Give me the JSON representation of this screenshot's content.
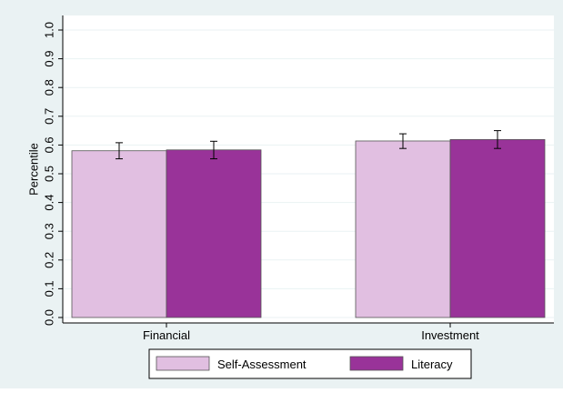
{
  "chart_data": {
    "type": "bar",
    "title": "",
    "xlabel": "",
    "ylabel": "Percentile",
    "ylim": [
      0,
      1
    ],
    "yticks": [
      "0.0",
      "0.1",
      "0.2",
      "0.3",
      "0.4",
      "0.5",
      "0.6",
      "0.7",
      "0.8",
      "0.9",
      "1.0"
    ],
    "grid": true,
    "categories": [
      "Financial",
      "Investment"
    ],
    "series": [
      {
        "name": "Self-Assessment",
        "color": "#e1bfe1",
        "values": [
          0.58,
          0.614
        ],
        "ci_low": [
          0.552,
          0.588
        ],
        "ci_high": [
          0.608,
          0.639
        ]
      },
      {
        "name": "Literacy",
        "color": "#993399",
        "values": [
          0.583,
          0.619
        ],
        "ci_low": [
          0.552,
          0.588
        ],
        "ci_high": [
          0.613,
          0.65
        ]
      }
    ],
    "legend": {
      "position": "bottom"
    },
    "colors": {
      "outer_background": "#eaf2f3",
      "plot_background": "#ffffff",
      "gridline": "#eaf2f3",
      "axis": "#000000",
      "bar_outline": "#555555"
    }
  }
}
